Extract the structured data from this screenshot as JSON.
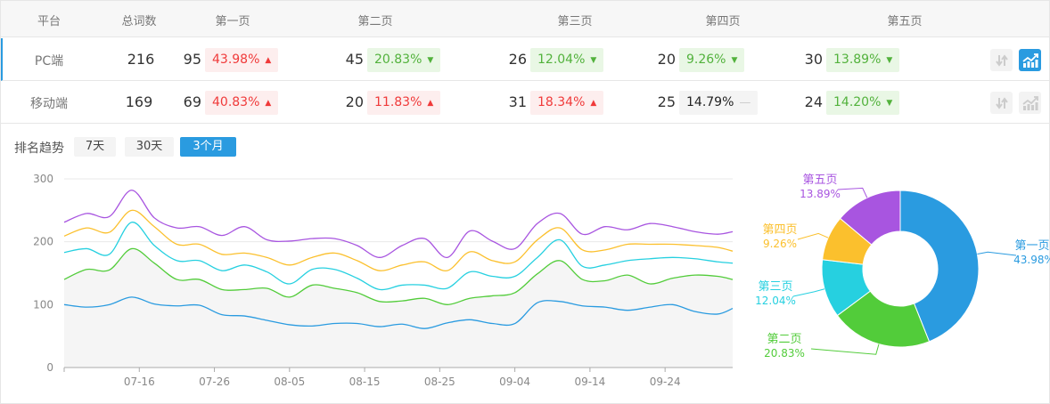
{
  "table": {
    "headers": [
      "平台",
      "总词数",
      "第一页",
      "第二页",
      "第三页",
      "第四页",
      "第五页"
    ],
    "rows": [
      {
        "platform": "PC端",
        "total": "216",
        "active": true,
        "pages": [
          {
            "count": "95",
            "pct": "43.98%",
            "trend": "up"
          },
          {
            "count": "45",
            "pct": "20.83%",
            "trend": "down"
          },
          {
            "count": "26",
            "pct": "12.04%",
            "trend": "down"
          },
          {
            "count": "20",
            "pct": "9.26%",
            "trend": "down"
          },
          {
            "count": "30",
            "pct": "13.89%",
            "trend": "down"
          }
        ],
        "actions": {
          "sort_icon": "sort-arrows-icon",
          "chart_icon": "trend-chart-icon",
          "chart_active": true
        }
      },
      {
        "platform": "移动端",
        "total": "169",
        "active": false,
        "pages": [
          {
            "count": "69",
            "pct": "40.83%",
            "trend": "up"
          },
          {
            "count": "20",
            "pct": "11.83%",
            "trend": "up"
          },
          {
            "count": "31",
            "pct": "18.34%",
            "trend": "up"
          },
          {
            "count": "25",
            "pct": "14.79%",
            "trend": "flat"
          },
          {
            "count": "24",
            "pct": "14.20%",
            "trend": "down"
          }
        ],
        "actions": {
          "sort_icon": "sort-arrows-icon",
          "chart_icon": "trend-chart-icon",
          "chart_active": false
        }
      }
    ],
    "trend_symbols": {
      "up": "▲",
      "down": "▼",
      "flat": "—"
    }
  },
  "trend": {
    "label": "排名趋势",
    "ranges": [
      {
        "label": "7天",
        "active": false
      },
      {
        "label": "30天",
        "active": false
      },
      {
        "label": "3个月",
        "active": true
      }
    ]
  },
  "chart_data": [
    {
      "type": "line",
      "x": [
        "07-06",
        "07-09",
        "07-12",
        "07-15",
        "07-18",
        "07-21",
        "07-24",
        "07-27",
        "07-30",
        "08-02",
        "08-05",
        "08-08",
        "08-11",
        "08-14",
        "08-17",
        "08-20",
        "08-23",
        "08-26",
        "08-29",
        "09-01",
        "09-04",
        "09-07",
        "09-10",
        "09-13",
        "09-16",
        "09-19",
        "09-22",
        "09-25",
        "09-28",
        "10-01",
        "10-03"
      ],
      "xticks": [
        "07-16",
        "07-26",
        "08-05",
        "08-15",
        "08-25",
        "09-04",
        "09-14",
        "09-24"
      ],
      "xrange": [
        "07-06",
        "10-03"
      ],
      "yticks": [
        0,
        100,
        200,
        300
      ],
      "ylim": [
        0,
        300
      ],
      "grid": true,
      "stacked": true,
      "series": [
        {
          "name": "第一页",
          "color": "#2a9be0",
          "values": [
            100,
            96,
            100,
            112,
            101,
            98,
            99,
            84,
            82,
            75,
            68,
            66,
            70,
            70,
            65,
            69,
            62,
            71,
            76,
            70,
            70,
            103,
            105,
            98,
            96,
            91,
            96,
            100,
            89,
            85,
            94
          ]
        },
        {
          "name": "第二页",
          "color": "#52cc3a",
          "values": [
            140,
            156,
            155,
            189,
            166,
            140,
            140,
            124,
            124,
            126,
            112,
            131,
            126,
            119,
            105,
            106,
            110,
            100,
            110,
            114,
            119,
            149,
            170,
            140,
            138,
            147,
            133,
            142,
            147,
            145,
            140
          ]
        },
        {
          "name": "第三页",
          "color": "#26d0e0",
          "values": [
            183,
            189,
            180,
            231,
            194,
            170,
            170,
            154,
            163,
            152,
            133,
            156,
            156,
            142,
            124,
            131,
            131,
            126,
            152,
            145,
            145,
            175,
            203,
            161,
            163,
            170,
            173,
            175,
            173,
            168,
            166
          ]
        },
        {
          "name": "第四页",
          "color": "#fbc02d",
          "values": [
            209,
            222,
            215,
            250,
            224,
            196,
            196,
            180,
            182,
            175,
            163,
            175,
            182,
            170,
            154,
            163,
            168,
            154,
            184,
            170,
            168,
            203,
            222,
            187,
            187,
            196,
            196,
            196,
            194,
            191,
            185
          ]
        },
        {
          "name": "第五页",
          "color": "#a855e0",
          "values": [
            231,
            245,
            240,
            282,
            238,
            222,
            224,
            210,
            224,
            203,
            201,
            205,
            205,
            194,
            175,
            194,
            205,
            175,
            217,
            201,
            189,
            229,
            245,
            212,
            224,
            219,
            229,
            224,
            216,
            212,
            216
          ]
        }
      ]
    },
    {
      "type": "pie",
      "donut": true,
      "slices": [
        {
          "label": "第一页",
          "value": 43.98,
          "pct_label": "43.98%",
          "color": "#2a9be0"
        },
        {
          "label": "第二页",
          "value": 20.83,
          "pct_label": "20.83%",
          "color": "#52cc3a"
        },
        {
          "label": "第三页",
          "value": 12.04,
          "pct_label": "12.04%",
          "color": "#26d0e0"
        },
        {
          "label": "第四页",
          "value": 9.26,
          "pct_label": "9.26%",
          "color": "#fbc02d"
        },
        {
          "label": "第五页",
          "value": 13.89,
          "pct_label": "13.89%",
          "color": "#a855e0"
        }
      ]
    }
  ]
}
